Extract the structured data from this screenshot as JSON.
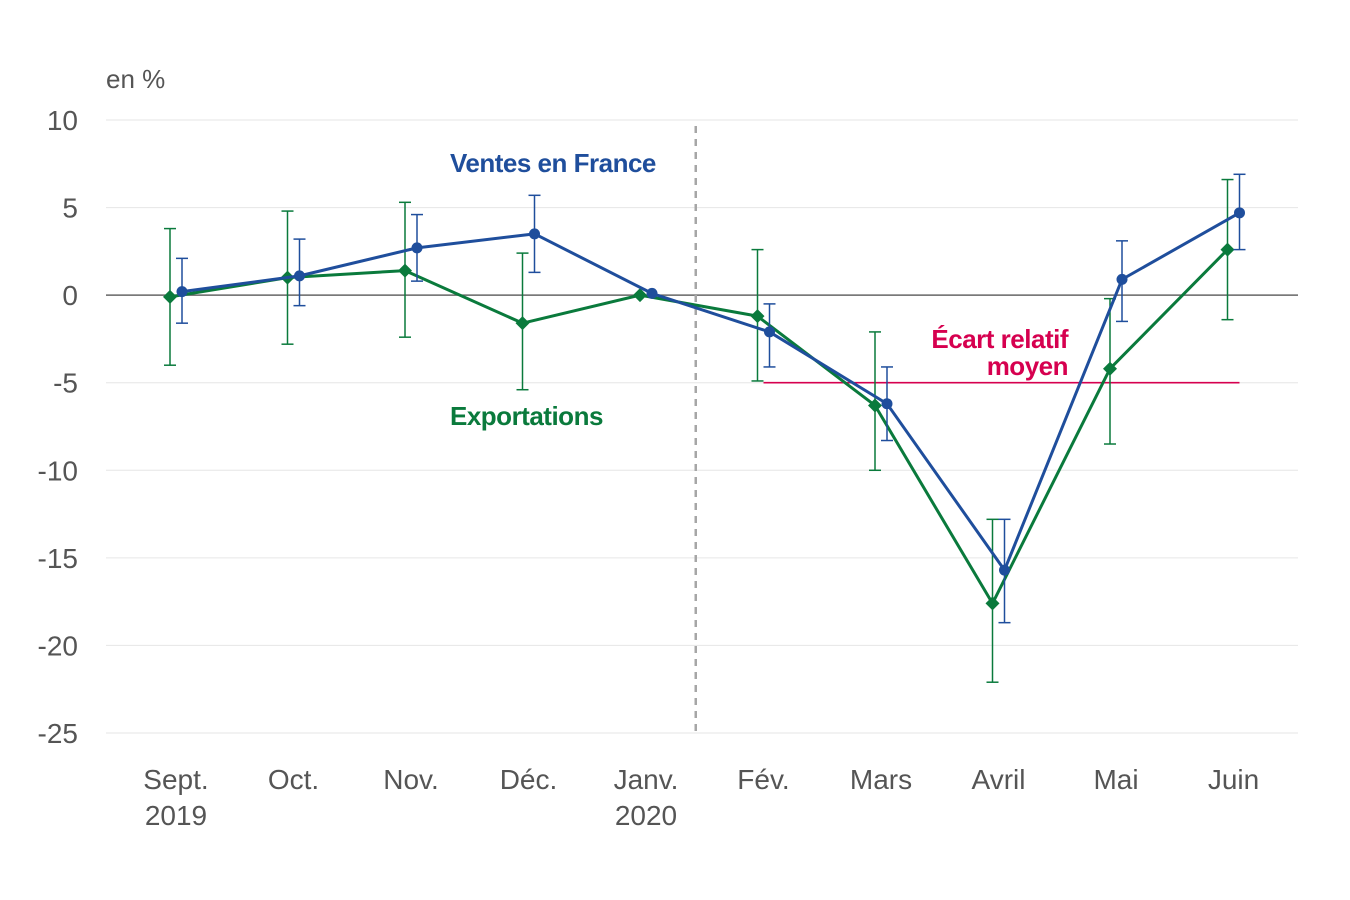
{
  "chart_data": {
    "type": "line",
    "unit_label": "en %",
    "categories": [
      [
        "Sept.",
        "2019"
      ],
      [
        "Oct."
      ],
      [
        "Nov."
      ],
      [
        "Déc."
      ],
      [
        "Janv.",
        "2020"
      ],
      [
        "Fév."
      ],
      [
        "Mars"
      ],
      [
        "Avril"
      ],
      [
        "Mai"
      ],
      [
        "Juin"
      ]
    ],
    "ylim": [
      -25,
      10
    ],
    "yticks": [
      10,
      5,
      0,
      -5,
      -10,
      -15,
      -20,
      -25
    ],
    "grid": true,
    "series": [
      {
        "name": "Ventes en France",
        "color": "#1f4e9c",
        "marker": "circle",
        "values": [
          0.2,
          1.1,
          2.7,
          3.5,
          0.1,
          -2.1,
          -6.2,
          -15.7,
          0.9,
          4.7
        ],
        "error_low": [
          -1.6,
          -0.6,
          0.8,
          1.3,
          0.1,
          -4.1,
          -8.3,
          -18.7,
          -1.5,
          2.6
        ],
        "error_high": [
          2.1,
          3.2,
          4.6,
          5.7,
          0.1,
          -0.5,
          -4.1,
          -12.8,
          3.1,
          6.9
        ]
      },
      {
        "name": "Exportations",
        "color": "#0a7a3c",
        "marker": "diamond",
        "values": [
          -0.1,
          1.0,
          1.4,
          -1.6,
          0.0,
          -1.2,
          -6.3,
          -17.6,
          -4.2,
          2.6
        ],
        "error_low": [
          -4.0,
          -2.8,
          -2.4,
          -5.4,
          0.0,
          -4.9,
          -10.0,
          -22.1,
          -8.5,
          -1.4
        ],
        "error_high": [
          3.8,
          4.8,
          5.3,
          2.4,
          0.0,
          2.6,
          -2.1,
          -12.8,
          -0.2,
          6.6
        ]
      }
    ],
    "reference_line": {
      "label": [
        "Écart relatif",
        "moyen"
      ],
      "value": -5.0,
      "from_index": 5,
      "to_index": 9,
      "color": "#d6004f"
    },
    "divider_after_index": 4
  }
}
